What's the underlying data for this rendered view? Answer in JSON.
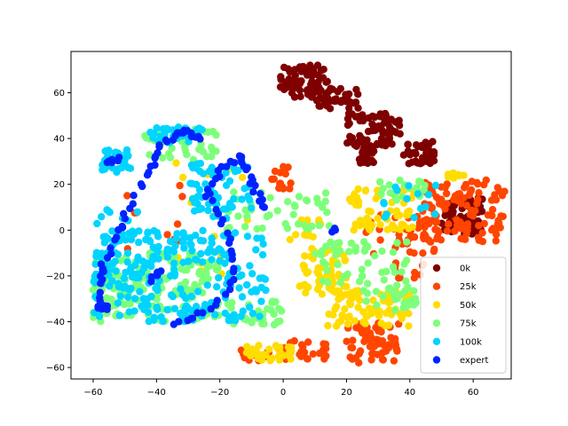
{
  "chart_data": {
    "type": "scatter",
    "title": "",
    "xlabel": "",
    "ylabel": "",
    "xlim": [
      -67,
      72
    ],
    "ylim": [
      -65,
      78
    ],
    "xticks": [
      -60,
      -40,
      -20,
      0,
      20,
      40,
      60
    ],
    "yticks": [
      -60,
      -40,
      -20,
      0,
      20,
      40,
      60
    ],
    "xtick_labels": [
      "−60",
      "−40",
      "−20",
      "0",
      "20",
      "40",
      "60"
    ],
    "ytick_labels": [
      "−60",
      "−40",
      "−20",
      "0",
      "20",
      "40",
      "60"
    ],
    "grid": false,
    "legend_position": "lower-right",
    "series": [
      {
        "name": "0k",
        "color": "#7f0000",
        "clusters": [
          {
            "x": [
              -1,
              14
            ],
            "y": [
              58,
              72
            ],
            "n": 70
          },
          {
            "x": [
              10,
              24
            ],
            "y": [
              53,
              62
            ],
            "n": 40
          },
          {
            "x": [
              20,
              37
            ],
            "y": [
              36,
              51
            ],
            "n": 80
          },
          {
            "x": [
              24,
              29
            ],
            "y": [
              29,
              36
            ],
            "n": 20
          },
          {
            "x": [
              38,
              48
            ],
            "y": [
              29,
              39
            ],
            "n": 40
          },
          {
            "x": [
              50,
              63
            ],
            "y": [
              -2,
              14
            ],
            "n": 90
          }
        ]
      },
      {
        "name": "25k",
        "color": "#ff4500",
        "clusters": [
          {
            "x": [
              44,
              70
            ],
            "y": [
              -5,
              23
            ],
            "n": 110
          },
          {
            "x": [
              26,
              49
            ],
            "y": [
              -11,
              7
            ],
            "n": 40
          },
          {
            "x": [
              20,
              37
            ],
            "y": [
              -58,
              -40
            ],
            "n": 60
          },
          {
            "x": [
              0,
              14
            ],
            "y": [
              -57,
              -48
            ],
            "n": 30
          },
          {
            "x": [
              -14,
              -4
            ],
            "y": [
              -57,
              -52
            ],
            "n": 15
          },
          {
            "x": [
              -5,
              3
            ],
            "y": [
              18,
              28
            ],
            "n": 15
          },
          {
            "x": [
              -50,
              -30
            ],
            "y": [
              -10,
              22
            ],
            "n": 10
          },
          {
            "x": [
              35,
              45
            ],
            "y": [
              -21,
              -14
            ],
            "n": 12
          }
        ]
      },
      {
        "name": "50k",
        "color": "#ffdd00",
        "clusters": [
          {
            "x": [
              5,
              20
            ],
            "y": [
              -28,
              -8
            ],
            "n": 60
          },
          {
            "x": [
              14,
              40
            ],
            "y": [
              -42,
              -25
            ],
            "n": 80
          },
          {
            "x": [
              20,
              42
            ],
            "y": [
              0,
              18
            ],
            "n": 60
          },
          {
            "x": [
              -12,
              3
            ],
            "y": [
              -57,
              -50
            ],
            "n": 30
          },
          {
            "x": [
              -35,
              -10
            ],
            "y": [
              -20,
              30
            ],
            "n": 20
          },
          {
            "x": [
              52,
              58
            ],
            "y": [
              22,
              26
            ],
            "n": 10
          },
          {
            "x": [
              2,
              12
            ],
            "y": [
              -5,
              5
            ],
            "n": 15
          }
        ]
      },
      {
        "name": "75k",
        "color": "#7dff7a",
        "clusters": [
          {
            "x": [
              -60,
              -20
            ],
            "y": [
              -40,
              -10
            ],
            "n": 170
          },
          {
            "x": [
              -44,
              -20
            ],
            "y": [
              30,
              44
            ],
            "n": 40
          },
          {
            "x": [
              -20,
              15
            ],
            "y": [
              0,
              17
            ],
            "n": 40
          },
          {
            "x": [
              10,
              40
            ],
            "y": [
              -25,
              -5
            ],
            "n": 50
          },
          {
            "x": [
              25,
              42
            ],
            "y": [
              -35,
              -25
            ],
            "n": 30
          },
          {
            "x": [
              -18,
              0
            ],
            "y": [
              -42,
              -30
            ],
            "n": 30
          },
          {
            "x": [
              30,
              45
            ],
            "y": [
              12,
              22
            ],
            "n": 20
          }
        ]
      },
      {
        "name": "100k",
        "color": "#00d4ff",
        "clusters": [
          {
            "x": [
              -60,
              -30
            ],
            "y": [
              -40,
              0
            ],
            "n": 160
          },
          {
            "x": [
              -30,
              -5
            ],
            "y": [
              -40,
              0
            ],
            "n": 90
          },
          {
            "x": [
              -58,
              -48
            ],
            "y": [
              25,
              35
            ],
            "n": 30
          },
          {
            "x": [
              -30,
              -10
            ],
            "y": [
              5,
              30
            ],
            "n": 60
          },
          {
            "x": [
              -42,
              -25
            ],
            "y": [
              38,
              45
            ],
            "n": 30
          },
          {
            "x": [
              -60,
              -45
            ],
            "y": [
              -5,
              10
            ],
            "n": 15
          },
          {
            "x": [
              30,
              50
            ],
            "y": [
              5,
              20
            ],
            "n": 15
          }
        ]
      },
      {
        "name": "expert",
        "color": "#0022ff",
        "paths": [
          {
            "points": [
              [
                -57,
                -34
              ],
              [
                -58,
                -22
              ],
              [
                -57,
                -15
              ],
              [
                -53,
                -3
              ],
              [
                -50,
                5
              ],
              [
                -45,
                20
              ],
              [
                -40,
                30
              ],
              [
                -38,
                38
              ],
              [
                -34,
                42
              ],
              [
                -30,
                43
              ],
              [
                -26,
                40
              ]
            ],
            "n": 50
          },
          {
            "points": [
              [
                -58,
                -34
              ],
              [
                -55,
                -34
              ]
            ],
            "n": 8
          },
          {
            "points": [
              [
                -34,
                -42
              ],
              [
                -28,
                -38
              ],
              [
                -22,
                -33
              ],
              [
                -17,
                -25
              ],
              [
                -15,
                -15
              ],
              [
                -17,
                -5
              ],
              [
                -20,
                5
              ],
              [
                -24,
                15
              ],
              [
                -22,
                22
              ],
              [
                -18,
                28
              ],
              [
                -14,
                32
              ],
              [
                -12,
                28
              ],
              [
                -10,
                22
              ],
              [
                -8,
                15
              ],
              [
                -6,
                10
              ]
            ],
            "n": 55
          },
          {
            "points": [
              [
                -56,
                30
              ],
              [
                -52,
                31
              ]
            ],
            "n": 8
          },
          {
            "points": [
              [
                -42,
                -22
              ],
              [
                -39,
                -18
              ]
            ],
            "n": 5
          },
          {
            "points": [
              [
                15,
                -1
              ],
              [
                17,
                1
              ]
            ],
            "n": 4
          }
        ]
      }
    ]
  }
}
